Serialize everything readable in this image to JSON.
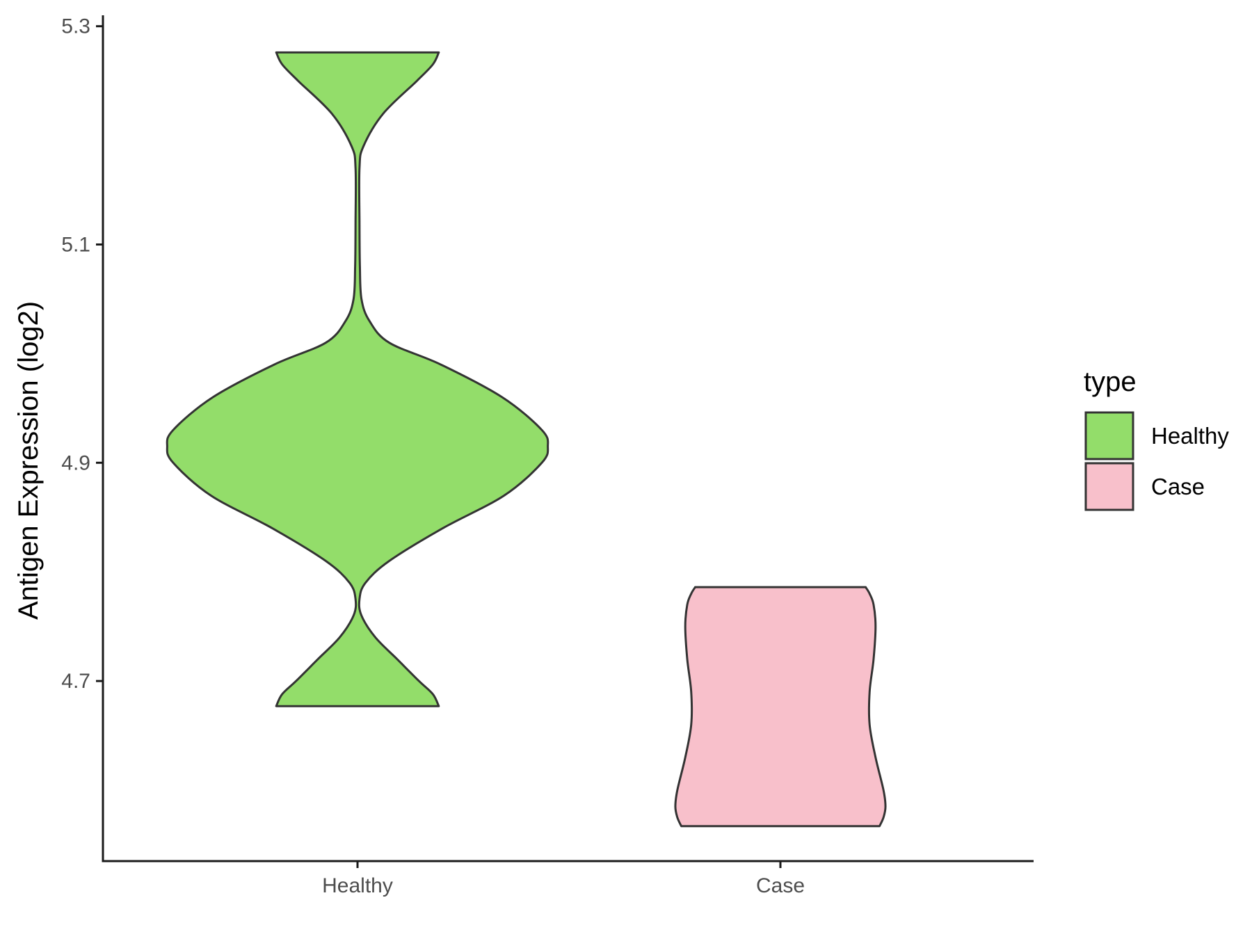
{
  "chart_data": {
    "type": "violin",
    "title": "",
    "xlabel": "",
    "ylabel": "Antigen Expression (log2)",
    "categories": [
      "Healthy",
      "Case"
    ],
    "yticks": [
      "4.7",
      "4.9",
      "5.1",
      "5.3"
    ],
    "ylim": [
      4.535,
      5.31
    ],
    "grid": false,
    "legend": {
      "title": "type",
      "position": "right",
      "entries": [
        {
          "label": "Healthy",
          "color": "#93DD6A"
        },
        {
          "label": "Case",
          "color": "#F8C0CB"
        }
      ]
    },
    "series": [
      {
        "name": "Healthy",
        "color": "#93DD6A",
        "ymin": 4.677,
        "ymax": 5.276,
        "profile": [
          [
            4.677,
            0.41
          ],
          [
            4.688,
            0.38
          ],
          [
            4.7,
            0.31
          ],
          [
            4.72,
            0.2
          ],
          [
            4.74,
            0.09
          ],
          [
            4.76,
            0.02
          ],
          [
            4.775,
            0.01
          ],
          [
            4.79,
            0.04
          ],
          [
            4.81,
            0.16
          ],
          [
            4.84,
            0.43
          ],
          [
            4.87,
            0.74
          ],
          [
            4.9,
            0.93
          ],
          [
            4.915,
            0.96
          ],
          [
            4.93,
            0.93
          ],
          [
            4.96,
            0.73
          ],
          [
            4.99,
            0.42
          ],
          [
            5.01,
            0.16
          ],
          [
            5.03,
            0.06
          ],
          [
            5.05,
            0.02
          ],
          [
            5.08,
            0.012
          ],
          [
            5.12,
            0.01
          ],
          [
            5.17,
            0.01
          ],
          [
            5.19,
            0.03
          ],
          [
            5.22,
            0.13
          ],
          [
            5.25,
            0.3
          ],
          [
            5.265,
            0.38
          ],
          [
            5.276,
            0.41
          ]
        ]
      },
      {
        "name": "Case",
        "color": "#F8C0CB",
        "ymin": 4.567,
        "ymax": 4.786,
        "profile": [
          [
            4.567,
            0.5
          ],
          [
            4.575,
            0.52
          ],
          [
            4.585,
            0.53
          ],
          [
            4.6,
            0.52
          ],
          [
            4.63,
            0.48
          ],
          [
            4.66,
            0.45
          ],
          [
            4.69,
            0.45
          ],
          [
            4.72,
            0.47
          ],
          [
            4.75,
            0.48
          ],
          [
            4.77,
            0.47
          ],
          [
            4.78,
            0.45
          ],
          [
            4.786,
            0.43
          ]
        ]
      }
    ]
  }
}
